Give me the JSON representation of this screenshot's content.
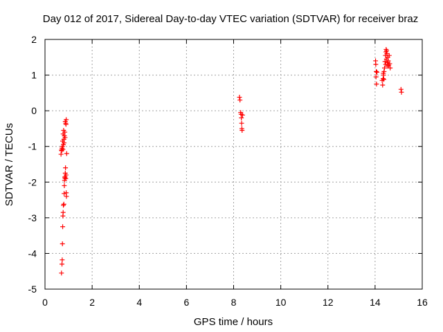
{
  "chart_data": {
    "type": "scatter",
    "title": "Day 012 of 2017, Sidereal Day-to-day VTEC variation (SDTVAR) for receiver braz",
    "xlabel": "GPS time / hours",
    "ylabel": "SDTVAR / TECUs",
    "xlim": [
      0,
      16
    ],
    "ylim": [
      -5,
      2
    ],
    "xticks": [
      0,
      2,
      4,
      6,
      8,
      10,
      12,
      14,
      16
    ],
    "yticks": [
      -5,
      -4,
      -3,
      -2,
      -1,
      0,
      1,
      2
    ],
    "grid": true,
    "marker": "plus",
    "color": "#ff0000",
    "points": [
      [
        0.7,
        -4.55
      ],
      [
        0.72,
        -4.3
      ],
      [
        0.73,
        -4.18
      ],
      [
        0.74,
        -3.73
      ],
      [
        0.75,
        -3.25
      ],
      [
        0.76,
        -2.95
      ],
      [
        0.77,
        -2.85
      ],
      [
        0.78,
        -2.65
      ],
      [
        0.8,
        -2.62
      ],
      [
        0.81,
        -2.32
      ],
      [
        0.82,
        -2.1
      ],
      [
        0.83,
        -1.95
      ],
      [
        0.84,
        -1.88
      ],
      [
        0.85,
        -1.85
      ],
      [
        0.86,
        -1.75
      ],
      [
        0.87,
        -1.6
      ],
      [
        0.88,
        -1.9
      ],
      [
        0.89,
        -1.8
      ],
      [
        0.9,
        -2.3
      ],
      [
        0.91,
        -2.4
      ],
      [
        0.92,
        -1.2
      ],
      [
        0.7,
        -1.1
      ],
      [
        0.72,
        -1.05
      ],
      [
        0.74,
        -1.0
      ],
      [
        0.76,
        -1.08
      ],
      [
        0.78,
        -0.95
      ],
      [
        0.8,
        -0.8
      ],
      [
        0.82,
        -0.7
      ],
      [
        0.84,
        -0.6
      ],
      [
        0.86,
        -0.3
      ],
      [
        0.88,
        -0.35
      ],
      [
        0.9,
        -0.25
      ],
      [
        0.75,
        -0.85
      ],
      [
        0.77,
        -0.65
      ],
      [
        0.79,
        -0.55
      ],
      [
        0.81,
        -0.9
      ],
      [
        0.85,
        -0.75
      ],
      [
        0.89,
        -0.38
      ],
      [
        0.68,
        -1.22
      ],
      [
        0.71,
        -1.12
      ],
      [
        8.25,
        0.38
      ],
      [
        8.27,
        0.3
      ],
      [
        8.3,
        -0.05
      ],
      [
        8.32,
        -0.1
      ],
      [
        8.33,
        -0.2
      ],
      [
        8.34,
        -0.35
      ],
      [
        8.35,
        -0.5
      ],
      [
        8.36,
        -0.55
      ],
      [
        8.38,
        -0.12
      ],
      [
        14.02,
        1.4
      ],
      [
        14.03,
        1.3
      ],
      [
        14.05,
        1.1
      ],
      [
        14.04,
        0.95
      ],
      [
        14.06,
        0.75
      ],
      [
        14.08,
        1.08
      ],
      [
        14.3,
        0.85
      ],
      [
        14.32,
        0.72
      ],
      [
        14.34,
        0.9
      ],
      [
        14.36,
        1.0
      ],
      [
        14.38,
        1.1
      ],
      [
        14.4,
        1.2
      ],
      [
        14.42,
        1.38
      ],
      [
        14.44,
        1.55
      ],
      [
        14.46,
        1.65
      ],
      [
        14.47,
        1.72
      ],
      [
        14.48,
        1.45
      ],
      [
        14.5,
        1.6
      ],
      [
        14.52,
        1.35
      ],
      [
        14.54,
        1.5
      ],
      [
        14.56,
        1.4
      ],
      [
        14.58,
        1.28
      ],
      [
        14.6,
        1.55
      ],
      [
        14.62,
        1.32
      ],
      [
        14.64,
        1.2
      ],
      [
        14.35,
        1.05
      ],
      [
        14.37,
        0.88
      ],
      [
        14.45,
        1.3
      ],
      [
        14.49,
        1.68
      ],
      [
        14.53,
        1.25
      ],
      [
        15.1,
        0.6
      ],
      [
        15.12,
        0.52
      ]
    ]
  }
}
